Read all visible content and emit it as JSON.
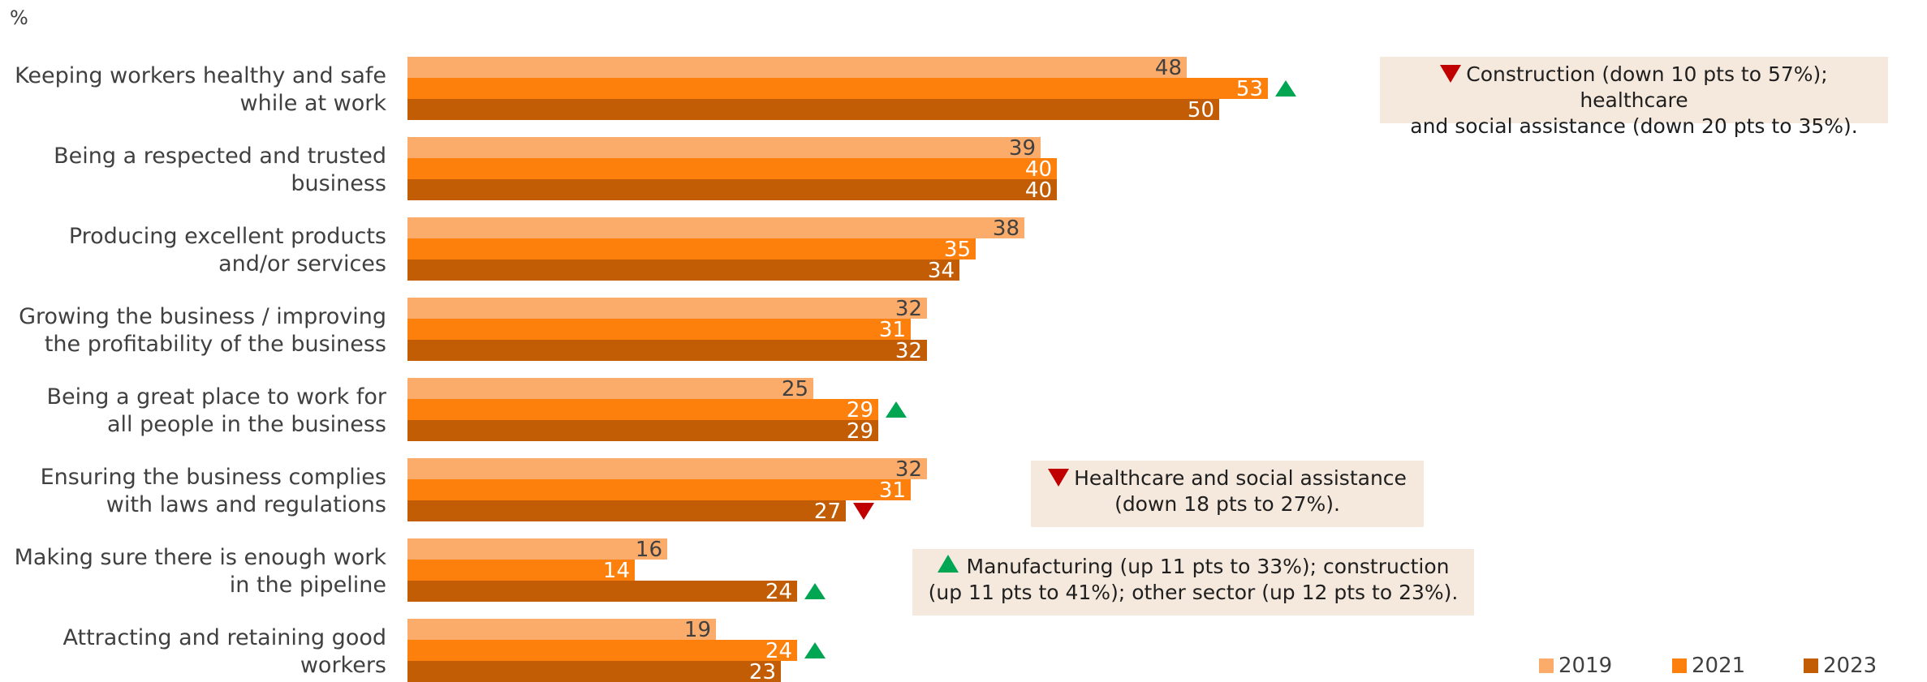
{
  "chart_data": {
    "type": "bar",
    "orientation": "horizontal",
    "unit_label": "%",
    "categories": [
      [
        "Keeping workers healthy and safe",
        "while at work"
      ],
      [
        "Being a respected and trusted",
        "business"
      ],
      [
        "Producing excellent products",
        "and/or services"
      ],
      [
        "Growing the business / improving",
        "the profitability of the business"
      ],
      [
        "Being a great place to work for",
        "all people in the business"
      ],
      [
        "Ensuring the business complies",
        "with laws and regulations"
      ],
      [
        "Making sure there is enough work",
        "in the pipeline"
      ],
      [
        "Attracting and retaining good",
        "workers"
      ]
    ],
    "series": [
      {
        "name": "2019",
        "color": "#fbac6a",
        "values": [
          48,
          39,
          38,
          32,
          25,
          32,
          16,
          19
        ]
      },
      {
        "name": "2021",
        "color": "#fd7f0c",
        "values": [
          53,
          40,
          35,
          31,
          29,
          31,
          14,
          24
        ]
      },
      {
        "name": "2023",
        "color": "#c35d05",
        "values": [
          50,
          40,
          34,
          32,
          29,
          27,
          24,
          23
        ]
      }
    ],
    "xlim": [
      0,
      60
    ],
    "legend_position": "bottom-right",
    "significance_markers": [
      {
        "category_index": 0,
        "series": "2021",
        "direction": "up"
      },
      {
        "category_index": 4,
        "series": "2021",
        "direction": "up"
      },
      {
        "category_index": 5,
        "series": "2023",
        "direction": "down"
      },
      {
        "category_index": 6,
        "series": "2023",
        "direction": "up"
      },
      {
        "category_index": 7,
        "series": "2021",
        "direction": "up"
      }
    ],
    "up_color": "#00a651",
    "down_color": "#c00000"
  },
  "annotations": [
    {
      "direction": "down",
      "lines": [
        "Construction (down 10 pts to 57%); healthcare",
        "and social assistance (down 20 pts to 35%)."
      ]
    },
    {
      "direction": "down",
      "lines": [
        "Healthcare and social assistance",
        "(down 18 pts to 27%)."
      ]
    },
    {
      "direction": "up",
      "lines": [
        "Manufacturing (up 11 pts to 33%); construction",
        "(up 11 pts to 41%); other sector (up 12 pts to 23%)."
      ]
    }
  ]
}
